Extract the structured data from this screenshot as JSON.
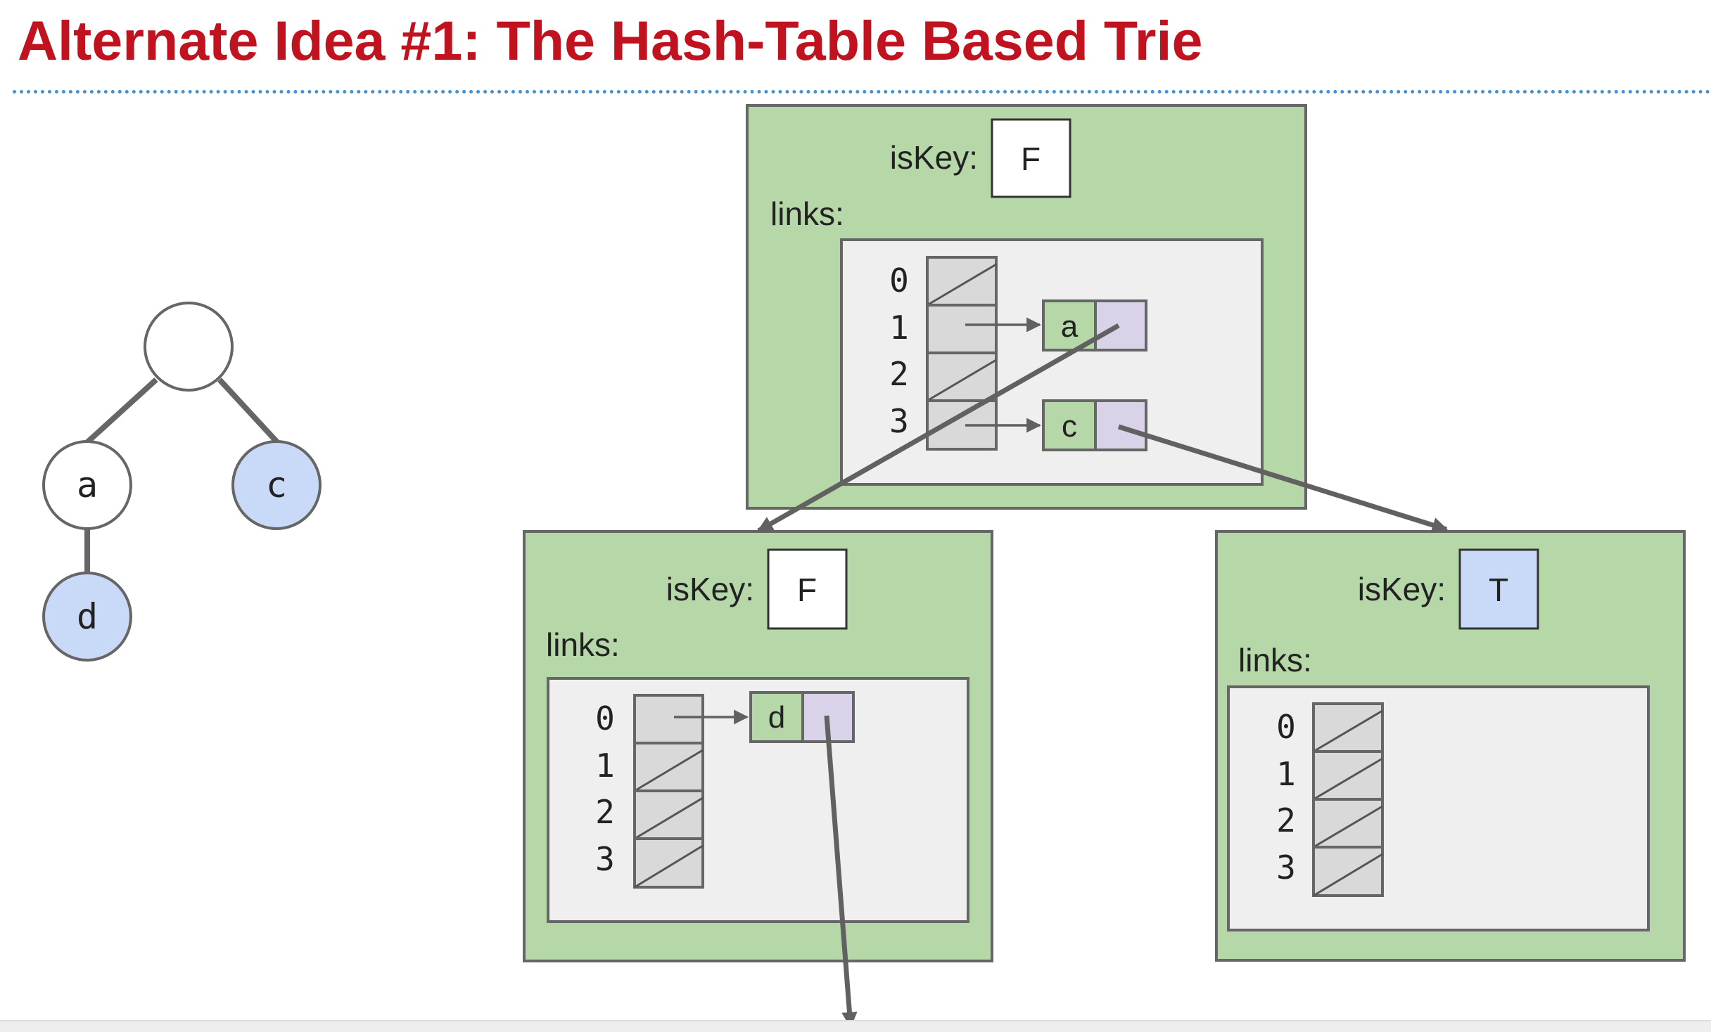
{
  "title": "Alternate Idea #1: The Hash-Table Based Trie",
  "tree": {
    "nodes": [
      {
        "label": "",
        "is_key": false
      },
      {
        "label": "a",
        "is_key": false
      },
      {
        "label": "c",
        "is_key": true
      },
      {
        "label": "d",
        "is_key": true
      }
    ]
  },
  "fields": {
    "is_key_label": "isKey:",
    "links_label": "links:"
  },
  "tables": [
    {
      "is_key_value": "F",
      "indices": [
        "0",
        "1",
        "2",
        "3"
      ],
      "entries": [
        {
          "index": "1",
          "char": "a"
        },
        {
          "index": "3",
          "char": "c"
        }
      ]
    },
    {
      "is_key_value": "F",
      "indices": [
        "0",
        "1",
        "2",
        "3"
      ],
      "entries": [
        {
          "index": "0",
          "char": "d"
        }
      ]
    },
    {
      "is_key_value": "T",
      "indices": [
        "0",
        "1",
        "2",
        "3"
      ],
      "entries": []
    }
  ],
  "colors": {
    "title": "#c0121f",
    "node_green": "#b6d7a8",
    "node_border": "#666666",
    "table_bg": "#efefef",
    "bucket": "#d9d9d9",
    "key_blue": "#c9daf8",
    "pointer_purple": "#d9d2e9",
    "dotted_rule": "#4a90c8"
  }
}
